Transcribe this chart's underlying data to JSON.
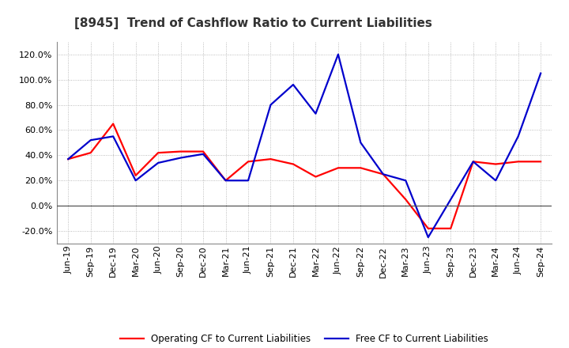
{
  "title": "[8945]  Trend of Cashflow Ratio to Current Liabilities",
  "x_labels": [
    "Jun-19",
    "Sep-19",
    "Dec-19",
    "Mar-20",
    "Jun-20",
    "Sep-20",
    "Dec-20",
    "Mar-21",
    "Jun-21",
    "Sep-21",
    "Dec-21",
    "Mar-22",
    "Jun-22",
    "Sep-22",
    "Dec-22",
    "Mar-23",
    "Jun-23",
    "Sep-23",
    "Dec-23",
    "Mar-24",
    "Jun-24",
    "Sep-24"
  ],
  "operating_cf": [
    37,
    42,
    65,
    24,
    42,
    43,
    43,
    20,
    35,
    37,
    33,
    23,
    30,
    30,
    25,
    5,
    -18,
    -18,
    35,
    33,
    35,
    35
  ],
  "free_cf": [
    37,
    52,
    55,
    20,
    34,
    38,
    41,
    20,
    20,
    80,
    96,
    73,
    120,
    50,
    25,
    20,
    -25,
    5,
    35,
    20,
    55,
    105
  ],
  "operating_color": "#ff0000",
  "free_color": "#0000cc",
  "background_color": "#ffffff",
  "plot_bg_color": "#ffffff",
  "grid_color": "#aaaaaa",
  "ylim": [
    -30,
    130
  ],
  "yticks": [
    -20,
    0,
    20,
    40,
    60,
    80,
    100,
    120
  ],
  "legend_op": "Operating CF to Current Liabilities",
  "legend_free": "Free CF to Current Liabilities",
  "title_fontsize": 11,
  "tick_fontsize": 8,
  "legend_fontsize": 8.5,
  "line_width": 1.6
}
